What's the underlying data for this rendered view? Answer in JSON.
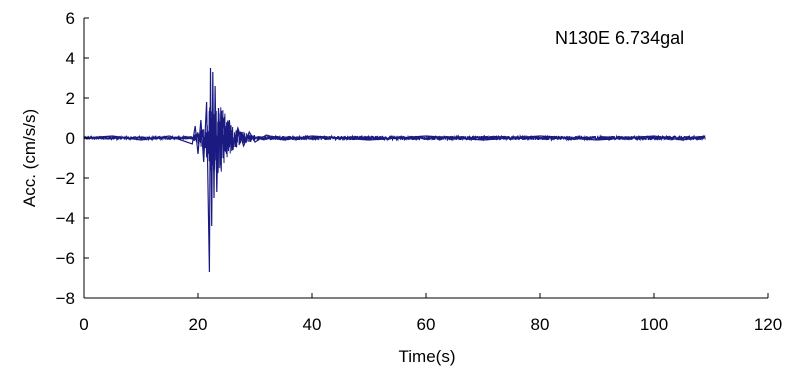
{
  "chart_data": {
    "type": "line",
    "title": "",
    "annotation": "N130E 6.734gal",
    "xlabel": "Time(s)",
    "ylabel": "Acc. (cm/s/s)",
    "xlim": [
      0,
      120
    ],
    "ylim": [
      -8,
      6
    ],
    "xticks": [
      0,
      20,
      40,
      60,
      80,
      100,
      120
    ],
    "yticks": [
      6,
      4,
      2,
      0,
      -2,
      -4,
      -6,
      -8
    ],
    "xtick_labels": [
      "0",
      "20",
      "40",
      "60",
      "80",
      "100",
      "120"
    ],
    "ytick_labels": [
      "6",
      "4",
      "2",
      "0",
      "−2",
      "−4",
      "−6",
      "−8"
    ],
    "grid": false,
    "legend": "none",
    "colors": {
      "series": "#1a1a80",
      "axis": "#000000"
    },
    "series": [
      {
        "x": [
          0,
          5,
          10,
          15,
          19,
          19.5,
          20,
          20.5,
          21,
          21.5,
          22,
          22.2,
          22.4,
          22.6,
          22.8,
          23,
          23.3,
          23.6,
          24,
          24.5,
          25,
          25.5,
          26,
          27,
          28,
          29,
          30,
          32,
          35,
          40,
          50,
          60,
          70,
          80,
          90,
          100,
          105,
          109
        ],
        "y": [
          0,
          0.1,
          -0.1,
          0.1,
          -0.3,
          0.6,
          -0.8,
          0.9,
          -1.2,
          1.8,
          -6.7,
          3.5,
          -4.4,
          3.3,
          -3.0,
          2.6,
          -2.7,
          1.5,
          -1.2,
          1.0,
          -0.8,
          0.9,
          -0.6,
          0.5,
          -0.4,
          0.3,
          -0.2,
          0.15,
          -0.1,
          0.1,
          -0.1,
          0.1,
          -0.1,
          0.1,
          -0.1,
          0.1,
          -0.1,
          0.1
        ]
      }
    ]
  }
}
